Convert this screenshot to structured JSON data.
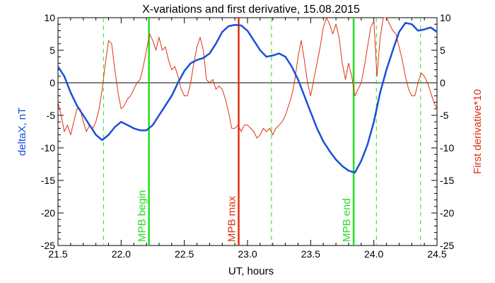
{
  "chart_data": {
    "type": "line",
    "title": "X-variations and first derivative, 15.08.2015",
    "xlabel": "UT, hours",
    "ylabel_left": "deltaX, nT",
    "ylabel_right": "First derivative*10",
    "xlim": [
      21.5,
      24.5
    ],
    "ylim": [
      -25,
      10
    ],
    "x_ticks": [
      "21.5",
      "22.0",
      "22.5",
      "23.0",
      "23.5",
      "24.0",
      "24.5"
    ],
    "y_ticks": [
      "10",
      "5",
      "0",
      "-5",
      "-10",
      "-15",
      "-20",
      "-25"
    ],
    "zero_line": 0,
    "colors": {
      "series_x": "#1a4fd6",
      "series_derivative": "#e03010",
      "mpb_begin_end": "#22dd22",
      "mpb_max": "#e03010",
      "dashed": "#22dd22",
      "left_label": "#1a4fd6",
      "right_label": "#e03010"
    },
    "series": [
      {
        "name": "deltaX",
        "x": [
          21.5,
          21.55,
          21.6,
          21.65,
          21.7,
          21.75,
          21.8,
          21.85,
          21.9,
          21.95,
          22.0,
          22.05,
          22.1,
          22.15,
          22.2,
          22.25,
          22.3,
          22.35,
          22.4,
          22.45,
          22.5,
          22.55,
          22.6,
          22.65,
          22.7,
          22.75,
          22.8,
          22.85,
          22.9,
          22.95,
          23.0,
          23.05,
          23.1,
          23.15,
          23.2,
          23.25,
          23.3,
          23.35,
          23.4,
          23.45,
          23.5,
          23.55,
          23.6,
          23.65,
          23.7,
          23.75,
          23.8,
          23.85,
          23.9,
          23.95,
          24.0,
          24.05,
          24.1,
          24.15,
          24.2,
          24.25,
          24.3,
          24.35,
          24.4,
          24.45,
          24.5
        ],
        "values": [
          2.5,
          1.0,
          -1.5,
          -3.5,
          -5.0,
          -6.5,
          -8.0,
          -8.8,
          -8.0,
          -6.8,
          -6.0,
          -6.5,
          -7.0,
          -7.3,
          -7.3,
          -6.5,
          -5.0,
          -3.5,
          -2.0,
          0.0,
          1.8,
          3.0,
          3.5,
          3.8,
          4.5,
          6.0,
          7.8,
          8.7,
          8.9,
          8.8,
          8.0,
          6.5,
          5.0,
          4.0,
          4.2,
          4.5,
          4.0,
          2.5,
          0.5,
          -2.0,
          -4.5,
          -7.0,
          -9.0,
          -10.5,
          -11.8,
          -12.8,
          -13.5,
          -13.8,
          -12.0,
          -9.5,
          -6.0,
          -1.5,
          2.0,
          5.0,
          7.8,
          9.2,
          9.0,
          8.0,
          8.2,
          8.5,
          7.8
        ]
      },
      {
        "name": "First derivative*10",
        "x": [
          21.5,
          21.525,
          21.55,
          21.575,
          21.6,
          21.625,
          21.65,
          21.675,
          21.7,
          21.725,
          21.75,
          21.775,
          21.8,
          21.825,
          21.85,
          21.875,
          21.9,
          21.925,
          21.95,
          21.975,
          22.0,
          22.025,
          22.05,
          22.075,
          22.1,
          22.125,
          22.15,
          22.175,
          22.2,
          22.225,
          22.25,
          22.275,
          22.3,
          22.325,
          22.35,
          22.375,
          22.4,
          22.425,
          22.45,
          22.475,
          22.5,
          22.525,
          22.55,
          22.575,
          22.6,
          22.625,
          22.65,
          22.675,
          22.7,
          22.725,
          22.75,
          22.775,
          22.8,
          22.825,
          22.85,
          22.875,
          22.9,
          22.925,
          22.95,
          22.975,
          23.0,
          23.025,
          23.05,
          23.075,
          23.1,
          23.125,
          23.15,
          23.175,
          23.2,
          23.225,
          23.25,
          23.275,
          23.3,
          23.325,
          23.35,
          23.375,
          23.4,
          23.425,
          23.45,
          23.475,
          23.5,
          23.525,
          23.55,
          23.575,
          23.6,
          23.625,
          23.65,
          23.675,
          23.7,
          23.725,
          23.75,
          23.775,
          23.8,
          23.825,
          23.85,
          23.875,
          23.9,
          23.925,
          23.95,
          23.975,
          24.0,
          24.025,
          24.05,
          24.075,
          24.1,
          24.125,
          24.15,
          24.175,
          24.2,
          24.225,
          24.25,
          24.275,
          24.3,
          24.325,
          24.35,
          24.375,
          24.4,
          24.425,
          24.45,
          24.475,
          24.5
        ],
        "values": [
          -3,
          -5,
          -7.5,
          -6.5,
          -8,
          -6,
          -4,
          -4,
          -6,
          -7.5,
          -6.5,
          -7,
          -6,
          -4,
          -1,
          3,
          6.5,
          6,
          2,
          -1.5,
          -4,
          -3.5,
          -2.5,
          -2,
          -1,
          0,
          0.5,
          2.5,
          5,
          7.5,
          6.5,
          5,
          7,
          5,
          5.5,
          3.5,
          2,
          2.5,
          1,
          -1,
          -2,
          -2,
          0,
          3,
          5.5,
          7,
          5,
          0.5,
          0,
          0.5,
          -1,
          -0.5,
          -1,
          -2.5,
          -4.5,
          -7,
          -7,
          -6.5,
          -7.5,
          -6.5,
          -6.5,
          -7,
          -7.5,
          -8.5,
          -8,
          -7,
          -7.5,
          -7,
          -8,
          -7,
          -6.5,
          -6,
          -5,
          -3.5,
          -2,
          0.5,
          4,
          6.5,
          3.5,
          0,
          -2,
          0.5,
          3,
          5.5,
          8.5,
          10,
          9,
          7.5,
          9,
          7,
          3,
          0.5,
          3,
          1,
          -2,
          -1,
          0,
          2.5,
          5.5,
          8.5,
          9.5,
          1,
          7,
          10,
          10,
          9,
          8,
          7.5,
          5.5,
          3.5,
          1,
          -1,
          -2,
          -2,
          0,
          1.5,
          1,
          0,
          -1.5,
          -3,
          -4
        ]
      }
    ],
    "markers": [
      {
        "label": "MPB begin",
        "x": 22.22,
        "style": "solid",
        "color": "green"
      },
      {
        "label": "MPB max",
        "x": 22.93,
        "style": "solid",
        "color": "red"
      },
      {
        "label": "MPB end",
        "x": 23.84,
        "style": "solid",
        "color": "green"
      }
    ],
    "dashed_lines_x": [
      21.86,
      22.22,
      23.19,
      24.02,
      24.37
    ]
  }
}
